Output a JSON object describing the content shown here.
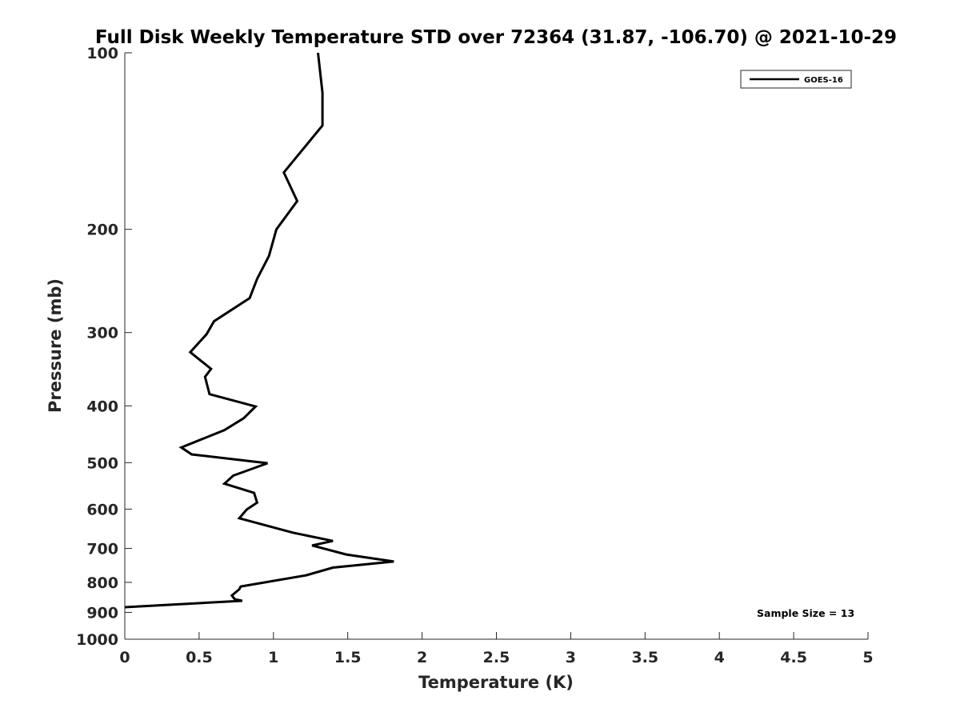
{
  "chart_data": {
    "type": "line",
    "title": "Full Disk Weekly Temperature STD over 72364 (31.87, -106.70) @ 2021-10-29",
    "xlabel": "Temperature (K)",
    "ylabel": "Pressure (mb)",
    "xlim": [
      0,
      5
    ],
    "ylim": [
      100,
      1000
    ],
    "y_scale": "log",
    "y_reversed": true,
    "x_ticks": [
      0,
      0.5,
      1,
      1.5,
      2,
      2.5,
      3,
      3.5,
      4,
      4.5,
      5
    ],
    "x_tick_labels": [
      "0",
      "0.5",
      "1",
      "1.5",
      "2",
      "2.5",
      "3",
      "3.5",
      "4",
      "4.5",
      "5"
    ],
    "y_ticks": [
      100,
      200,
      300,
      400,
      500,
      600,
      700,
      800,
      900,
      1000
    ],
    "y_tick_labels": [
      "100",
      "200",
      "300",
      "400",
      "500",
      "600",
      "700",
      "800",
      "900",
      "1000"
    ],
    "grid": false,
    "legend_position": "top-right",
    "annotation": "Sample Size = 13",
    "series": [
      {
        "name": "GOES-16",
        "color": "#000000",
        "points": [
          [
            1.3,
            100
          ],
          [
            1.33,
            117
          ],
          [
            1.33,
            133
          ],
          [
            1.07,
            160
          ],
          [
            1.16,
            179
          ],
          [
            1.02,
            200
          ],
          [
            0.97,
            222
          ],
          [
            0.89,
            243
          ],
          [
            0.84,
            262
          ],
          [
            0.6,
            287
          ],
          [
            0.55,
            302
          ],
          [
            0.44,
            324
          ],
          [
            0.58,
            346
          ],
          [
            0.54,
            357
          ],
          [
            0.57,
            382
          ],
          [
            0.88,
            401
          ],
          [
            0.8,
            420
          ],
          [
            0.67,
            440
          ],
          [
            0.38,
            471
          ],
          [
            0.45,
            484
          ],
          [
            0.96,
            501
          ],
          [
            0.73,
            526
          ],
          [
            0.67,
            543
          ],
          [
            0.87,
            563
          ],
          [
            0.89,
            585
          ],
          [
            0.82,
            601
          ],
          [
            0.77,
            622
          ],
          [
            1.13,
            658
          ],
          [
            1.4,
            680
          ],
          [
            1.26,
            692
          ],
          [
            1.49,
            717
          ],
          [
            1.81,
            737
          ],
          [
            1.4,
            755
          ],
          [
            1.22,
            778
          ],
          [
            0.78,
            813
          ],
          [
            0.77,
            822
          ],
          [
            0.72,
            842
          ],
          [
            0.74,
            855
          ],
          [
            0.79,
            860
          ],
          [
            0.0,
            882
          ]
        ]
      }
    ]
  }
}
